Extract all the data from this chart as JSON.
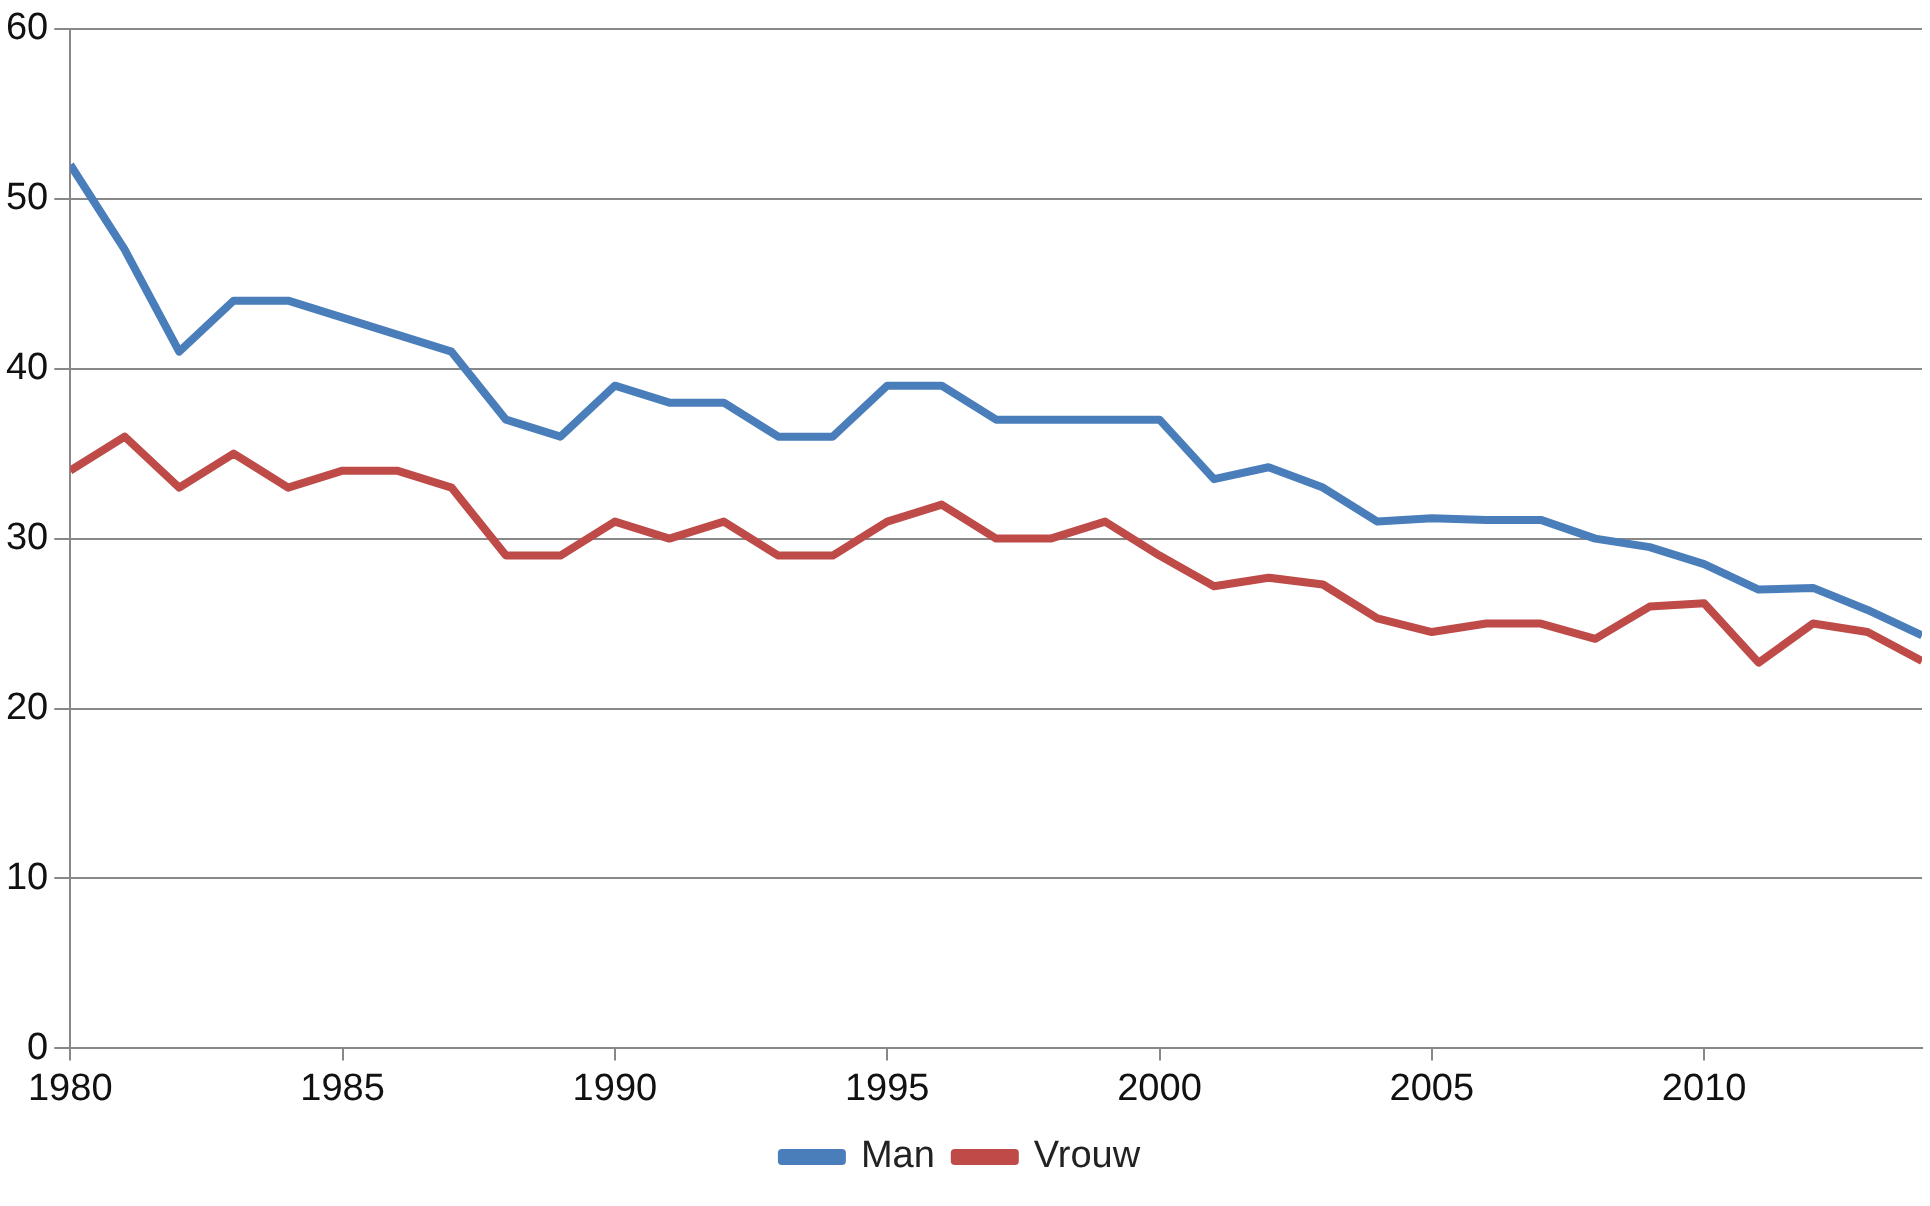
{
  "chart_data": {
    "type": "line",
    "x": [
      1980,
      1981,
      1982,
      1983,
      1984,
      1985,
      1986,
      1987,
      1988,
      1989,
      1990,
      1991,
      1992,
      1993,
      1994,
      1995,
      1996,
      1997,
      1998,
      1999,
      2000,
      2001,
      2002,
      2003,
      2004,
      2005,
      2006,
      2007,
      2008,
      2009,
      2010,
      2011,
      2012,
      2013,
      2014
    ],
    "series": [
      {
        "name": "Man",
        "color": "#4a7ebb",
        "values": [
          52,
          47,
          41,
          44,
          44,
          43,
          42,
          41,
          37,
          36,
          39,
          38,
          38,
          36,
          36,
          39,
          39,
          37,
          37,
          37,
          37,
          33.5,
          34.2,
          33,
          31,
          31.2,
          31.1,
          31.1,
          30,
          29.5,
          28.5,
          27,
          27.1,
          25.8,
          24.3
        ]
      },
      {
        "name": "Vrouw",
        "color": "#be4b48",
        "values": [
          34,
          36,
          33,
          35,
          33,
          34,
          34,
          33,
          29,
          29,
          31,
          30,
          31,
          29,
          29,
          31,
          32,
          30,
          30,
          31,
          29,
          27.2,
          27.7,
          27.3,
          25.3,
          24.5,
          25,
          25,
          24.1,
          26,
          26.2,
          22.7,
          25,
          24.5,
          22.8
        ]
      }
    ],
    "xlim": [
      1980,
      2014
    ],
    "xticks": [
      1980,
      1985,
      1990,
      1995,
      2000,
      2005,
      2010
    ],
    "ylim": [
      0,
      60
    ],
    "yticks": [
      0,
      10,
      20,
      30,
      40,
      50,
      60
    ],
    "grid": "y",
    "legend": "bottom",
    "marker": "none",
    "line_style": "solid"
  }
}
